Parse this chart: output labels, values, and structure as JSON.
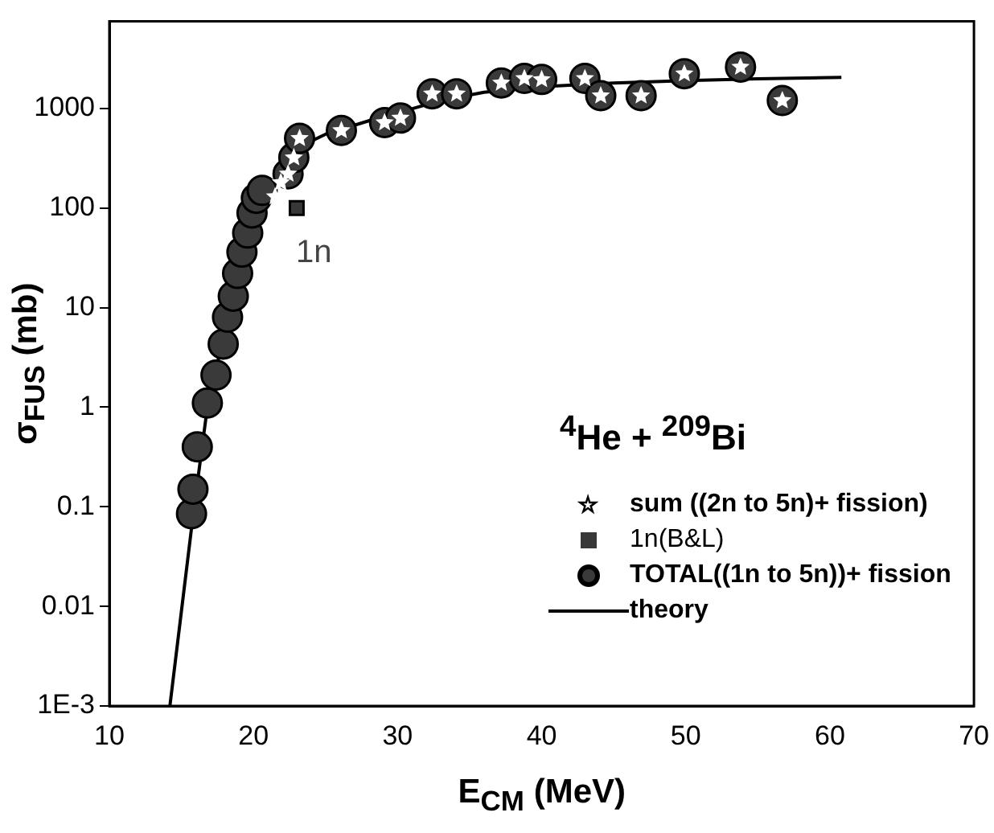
{
  "chart_data": {
    "type": "scatter",
    "xlabel": "E$_{CM}$ (MeV)",
    "ylabel": "σ$_{FUS}$ (mb)",
    "xlim": [
      10,
      70
    ],
    "xticks": [
      10,
      20,
      30,
      40,
      50,
      60,
      70
    ],
    "ylim": [
      0.001,
      7500
    ],
    "yticks": [
      {
        "value": 0.001,
        "label": "1E-3"
      },
      0.01,
      0.1,
      1,
      10,
      100,
      1000
    ],
    "log": "y",
    "grid": false,
    "legend": "bottom right",
    "annotations": [
      "$^{4}$He + $^{209}$Bi",
      "1n"
    ],
    "series": [
      {
        "name": "sum ((2n to 5n)+ fission)",
        "marker": "star",
        "color": "#ffffff",
        "x": [
          21.5,
          21.9,
          22.4,
          22.8,
          23.2,
          26.1,
          29.1,
          30.2,
          32.4,
          34.1,
          37.2,
          38.8,
          40.0,
          43.0,
          44.1,
          46.9,
          49.9,
          53.8,
          56.7
        ],
        "values": [
          130,
          180,
          220,
          320,
          500,
          600,
          720,
          800,
          1400,
          1400,
          1800,
          2000,
          1950,
          2000,
          1340,
          1340,
          2230,
          2600,
          1200
        ]
      },
      {
        "name": "1n(B&L)",
        "marker": "square",
        "color": "#383838",
        "x": [
          23.0
        ],
        "values": [
          100
        ]
      },
      {
        "name": "TOTAL((1n to 5n))+ fission",
        "marker": "circle",
        "color": "#3a3a3a",
        "x": [
          15.7,
          15.8,
          16.1,
          16.8,
          17.4,
          17.9,
          18.2,
          18.6,
          18.9,
          19.2,
          19.6,
          19.9,
          20.2,
          20.6,
          22.4,
          22.8,
          23.2,
          26.1,
          29.1,
          30.2,
          32.4,
          34.1,
          37.2,
          38.8,
          40.0,
          43.0,
          44.1,
          46.9,
          49.9,
          53.8,
          56.7
        ],
        "values": [
          0.085,
          0.15,
          0.4,
          1.1,
          2.1,
          4.3,
          8,
          13,
          22,
          36,
          56,
          89,
          125,
          150,
          220,
          320,
          500,
          600,
          720,
          800,
          1400,
          1400,
          1800,
          2000,
          1950,
          2000,
          1340,
          1340,
          2230,
          2600,
          1200
        ]
      },
      {
        "name": "theory",
        "type": "line",
        "marker": "none",
        "line_style": "solid",
        "color": "#000000",
        "x": [
          14.2,
          15.8,
          16.8,
          17.9,
          19,
          20,
          21,
          22,
          23,
          25,
          28,
          30,
          33,
          36,
          40,
          45,
          50,
          55,
          60.8
        ],
        "values": [
          0.001,
          0.08,
          1,
          5,
          25,
          80,
          150,
          250,
          400,
          550,
          750,
          900,
          1200,
          1450,
          1650,
          1800,
          1900,
          1980,
          2050
        ]
      }
    ]
  }
}
